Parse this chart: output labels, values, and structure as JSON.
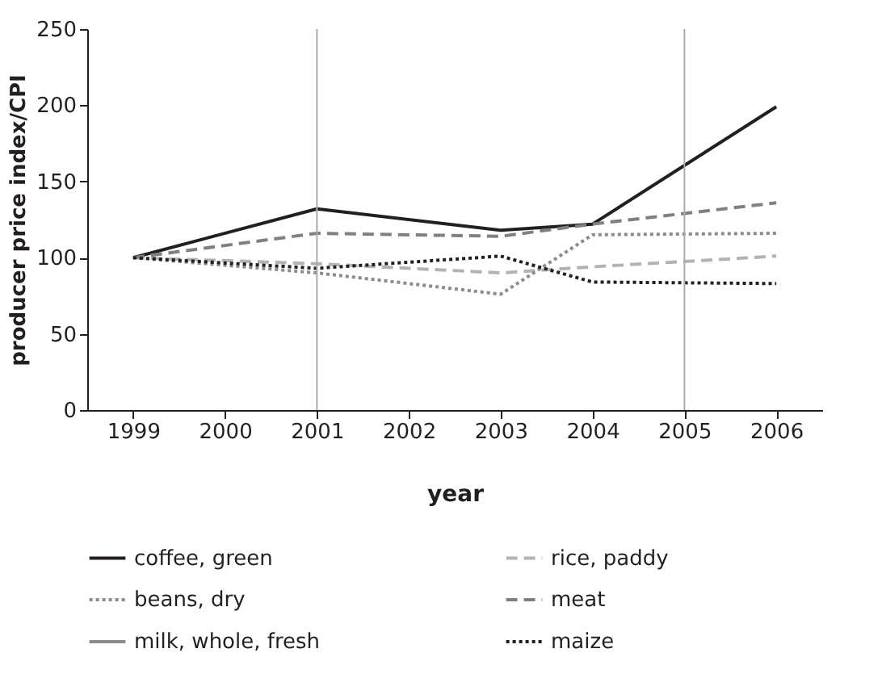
{
  "chart_data": {
    "type": "line",
    "xlabel": "year",
    "ylabel": "producer price index/CPI",
    "x": [
      1999,
      2001,
      2003,
      2004,
      2006
    ],
    "xlim": [
      1998.5,
      2006.5
    ],
    "xticks": [
      1999,
      2000,
      2001,
      2002,
      2003,
      2004,
      2005,
      2006
    ],
    "ylim": [
      0,
      250
    ],
    "yticks": [
      0,
      50,
      100,
      150,
      200,
      250
    ],
    "grid": false,
    "legend": "bottom",
    "marker": "none",
    "ref_lines": [
      {
        "axis": "x",
        "value": 2001,
        "color": "#aaaaaa"
      },
      {
        "axis": "x",
        "value": 2005,
        "color": "#aaaaaa"
      }
    ],
    "series": [
      {
        "name": "coffee, green",
        "color": "#231f20",
        "line_style": "solid",
        "values": [
          100,
          132,
          118,
          122,
          199
        ]
      },
      {
        "name": "rice, paddy",
        "color": "#b3b3b3",
        "line_style": "dashed",
        "values": [
          100,
          96,
          90,
          94,
          101
        ]
      },
      {
        "name": "beans, dry",
        "color": "#8c8c8c",
        "line_style": "dotted",
        "values": [
          100,
          90,
          76,
          115,
          116
        ]
      },
      {
        "name": "meat",
        "color": "#808080",
        "line_style": "dashed",
        "values": [
          100,
          116,
          114,
          122,
          136
        ]
      },
      {
        "name": "milk, whole, fresh",
        "color": "#8c8c8c",
        "line_style": "solid",
        "values": [
          null,
          null,
          null,
          null,
          null
        ]
      },
      {
        "name": "maize",
        "color": "#231f20",
        "line_style": "dotted",
        "values": [
          100,
          93,
          101,
          84,
          83
        ]
      }
    ]
  }
}
